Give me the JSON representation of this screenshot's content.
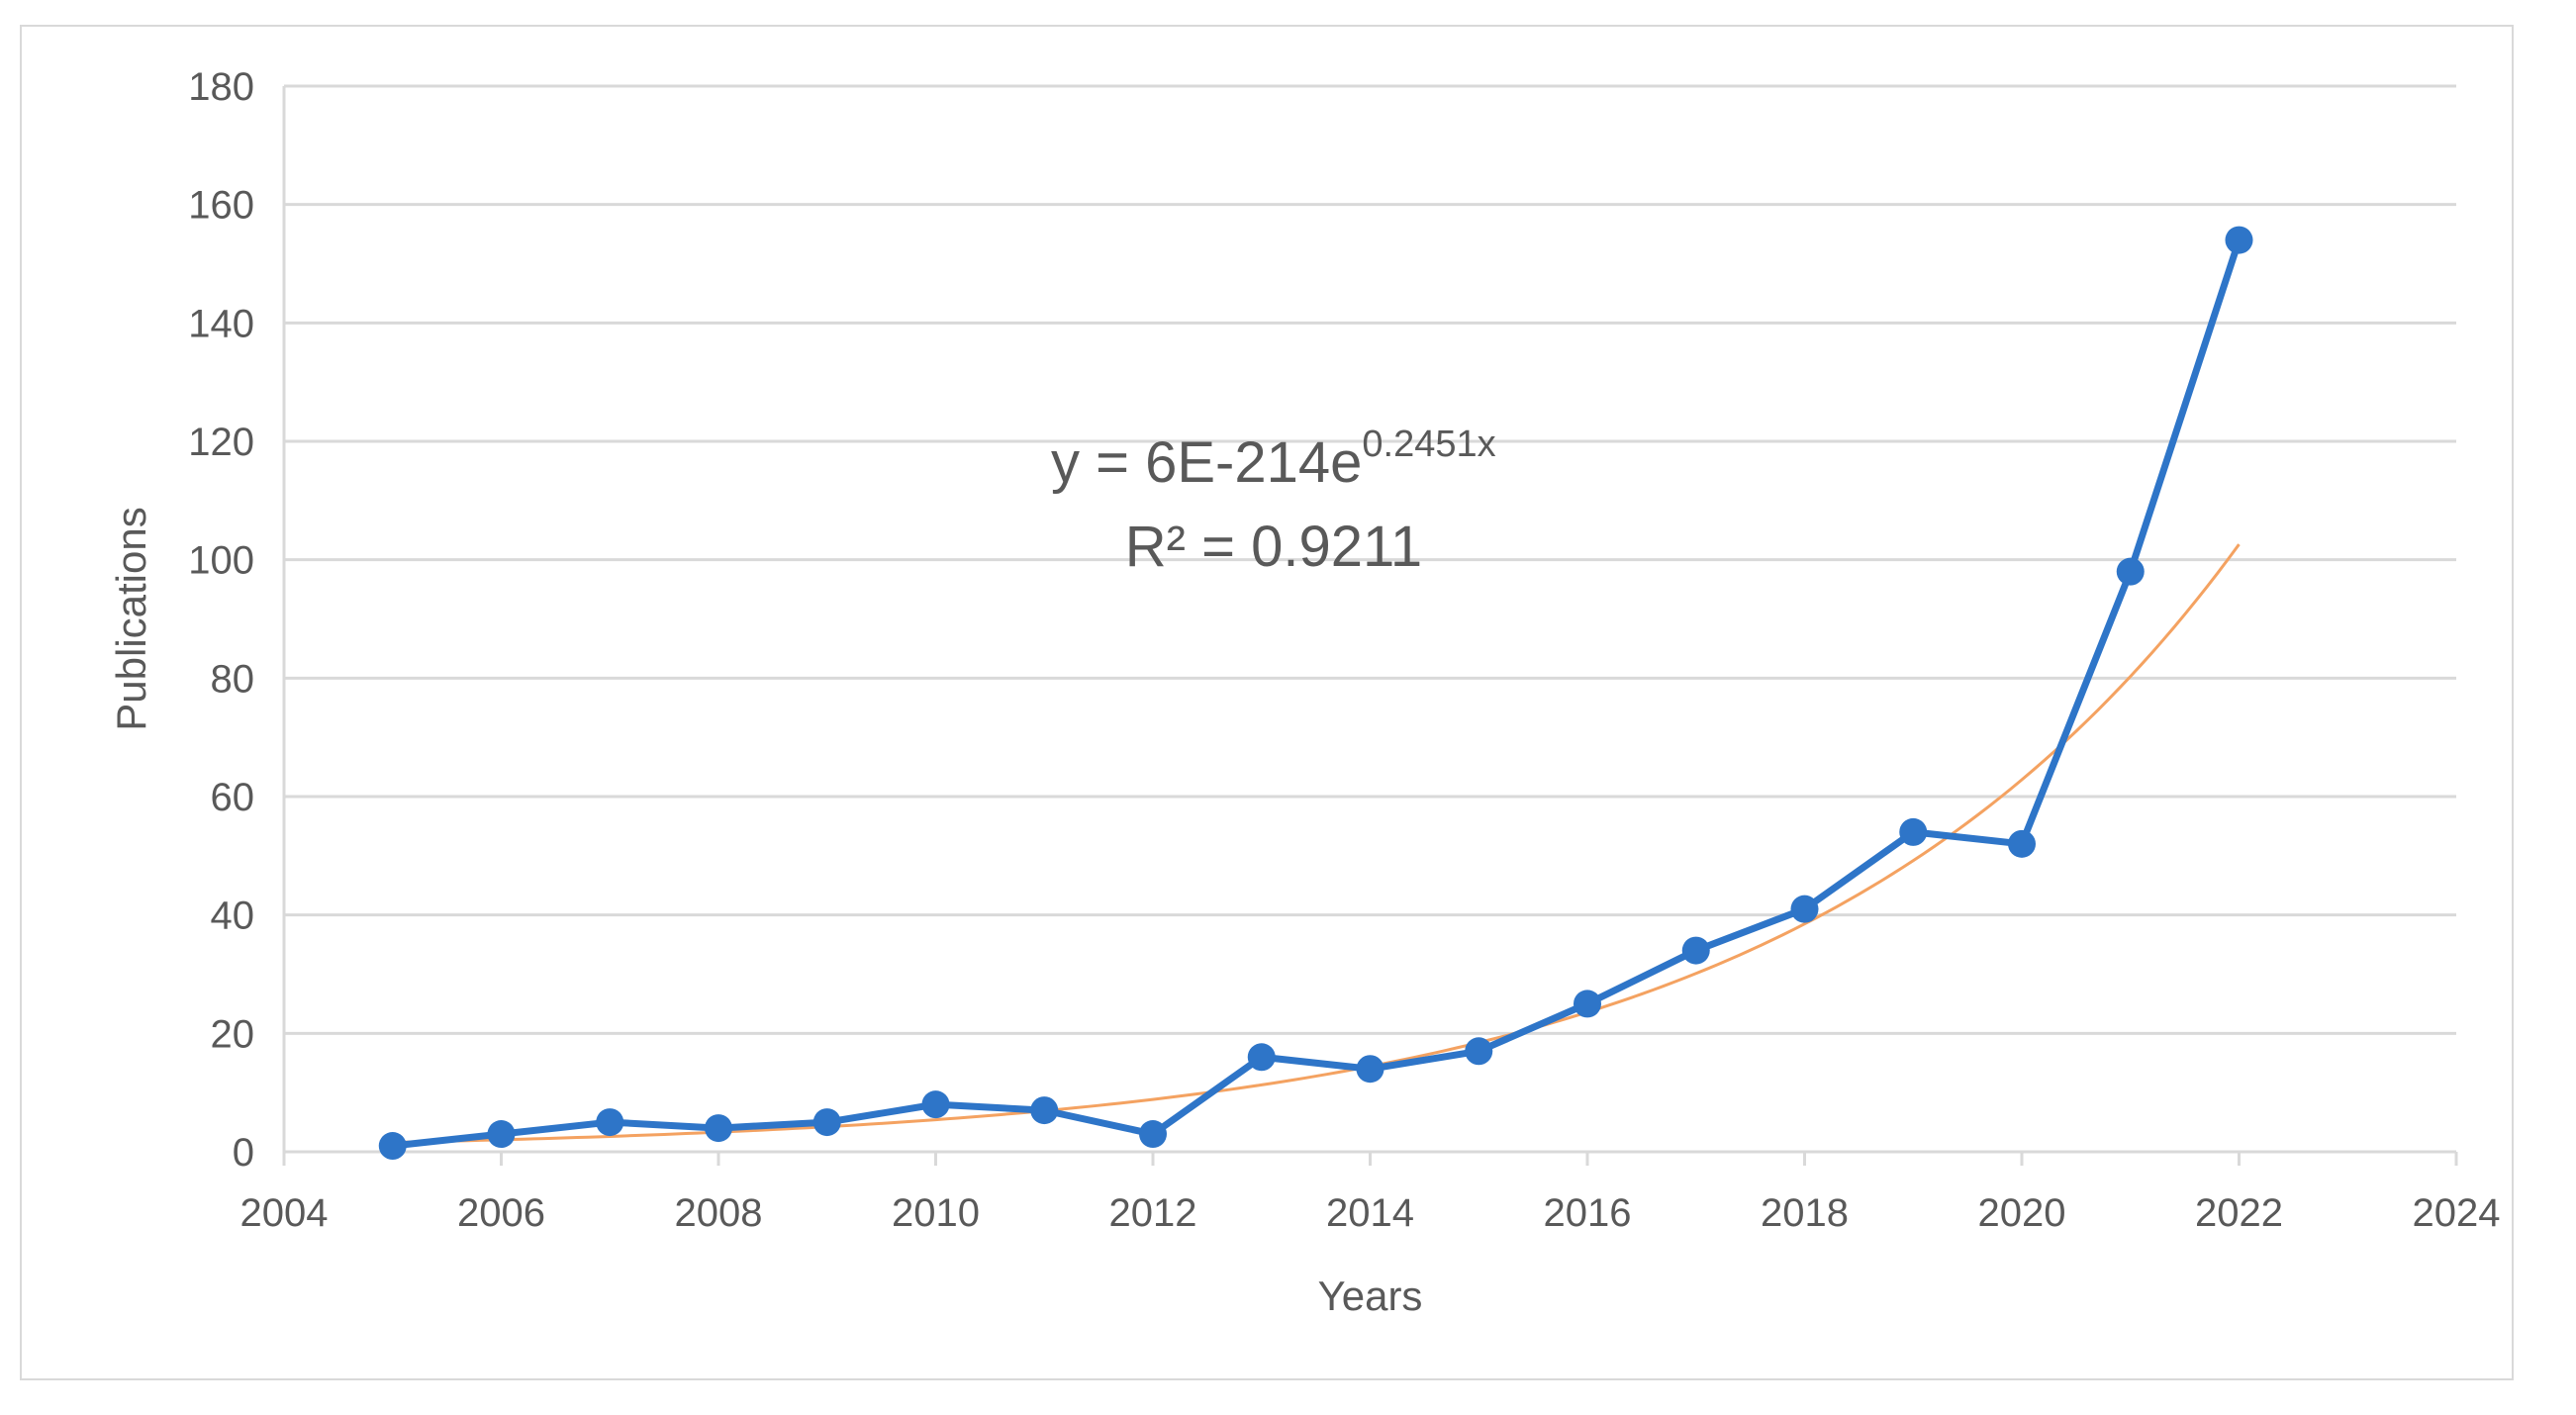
{
  "chart_data": {
    "type": "line",
    "xlabel": "Years",
    "ylabel": "Publications",
    "xlim": [
      2004,
      2024
    ],
    "ylim": [
      0,
      180
    ],
    "xticks": [
      "2004",
      "2006",
      "2008",
      "2010",
      "2012",
      "2014",
      "2016",
      "2018",
      "2020",
      "2022",
      "2024"
    ],
    "yticks": [
      "0",
      "20",
      "40",
      "60",
      "80",
      "100",
      "120",
      "140",
      "160",
      "180"
    ],
    "grid": "horizontal",
    "series": [
      {
        "x": [
          2005,
          2006,
          2007,
          2008,
          2009,
          2010,
          2011,
          2012,
          2013,
          2014,
          2015,
          2016,
          2017,
          2018,
          2019,
          2020,
          2021,
          2022
        ],
        "y": [
          1,
          3,
          5,
          4,
          5,
          8,
          7,
          3,
          16,
          14,
          17,
          25,
          34,
          41,
          54,
          52,
          98,
          154
        ],
        "color": "#2e75c8"
      }
    ],
    "trendline": {
      "type": "exponential",
      "coefficient": 6e-214,
      "rate": 0.2451,
      "x_range": [
        2005,
        2022
      ],
      "color": "#f4a261",
      "equation_text": "y = 6E-214e",
      "equation_exponent": "0.2451x",
      "r2_text": "R² = 0.9211"
    }
  }
}
